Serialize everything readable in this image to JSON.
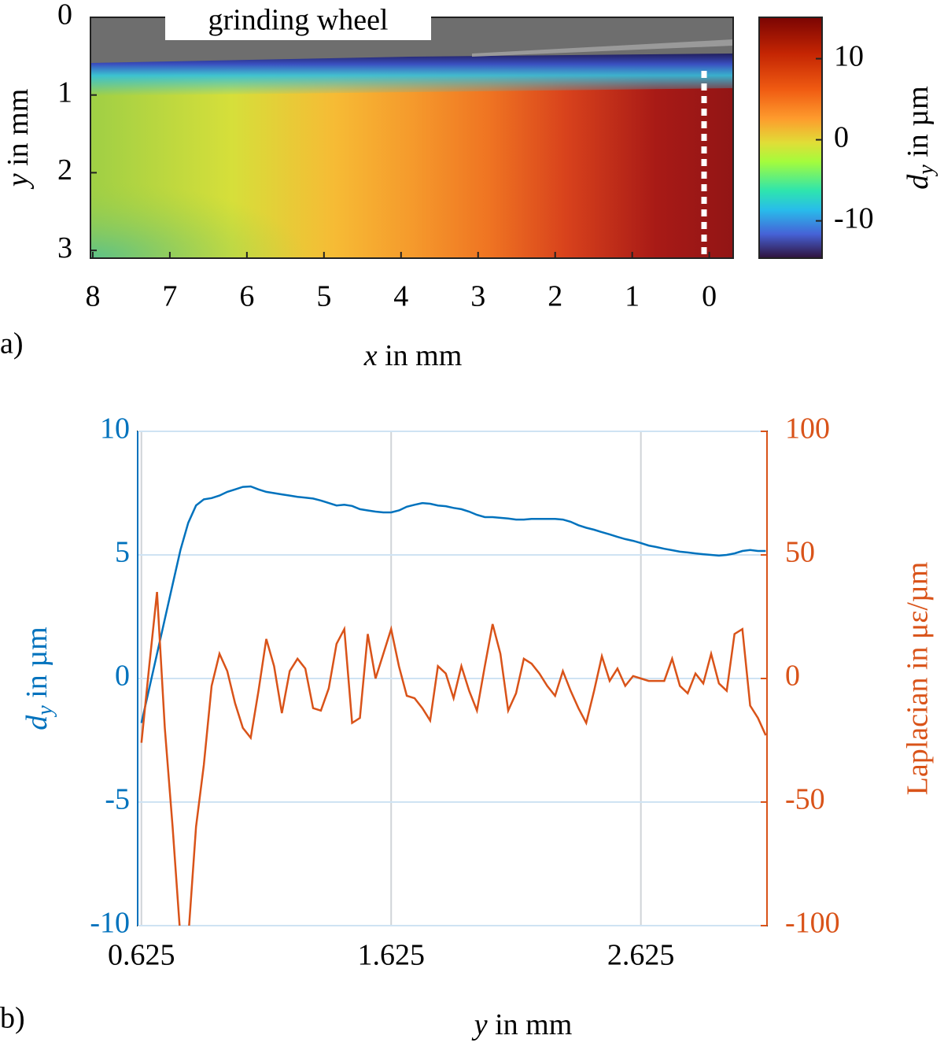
{
  "chart_data": [
    {
      "type": "heatmap",
      "annotation": "grinding wheel",
      "panel_label": "a)",
      "xlabel": {
        "symbol": "x",
        "text": " in mm"
      },
      "ylabel": {
        "symbol": "y",
        "text": " in mm"
      },
      "colorbar_label": {
        "symbol": "d",
        "subscript": "y",
        "text": " in µm"
      },
      "xlim": [
        8.03,
        -0.31
      ],
      "xticks": [
        8,
        7,
        6,
        5,
        4,
        3,
        2,
        1,
        0
      ],
      "ylim": [
        0,
        3.1
      ],
      "yticks": [
        0,
        1,
        2,
        3
      ],
      "clim": [
        -14.6,
        15.1
      ],
      "cticks": [
        -10,
        0,
        10
      ]
    },
    {
      "type": "line",
      "panel_label": "b)",
      "xlabel": {
        "symbol": "y",
        "text": " in mm"
      },
      "ylabel": {
        "symbol": "d",
        "subscript": "y",
        "text": " in µm"
      },
      "y2label": "Laplacian in με/µm",
      "xlim": [
        0.61,
        3.13
      ],
      "xticks": [
        0.625,
        1.625,
        2.625
      ],
      "ylim": [
        -10,
        10
      ],
      "yticks": [
        -10,
        -5,
        0,
        5,
        10
      ],
      "y2lim": [
        -100,
        100
      ],
      "y2ticks": [
        -100,
        -50,
        0,
        50,
        100
      ],
      "grid": true,
      "x": [
        0.625,
        0.65625,
        0.6875,
        0.71875,
        0.75,
        0.78125,
        0.8125,
        0.84375,
        0.875,
        0.90625,
        0.9375,
        0.96875,
        1.0,
        1.03125,
        1.0625,
        1.09375,
        1.125,
        1.15625,
        1.1875,
        1.21875,
        1.25,
        1.28125,
        1.3125,
        1.34375,
        1.375,
        1.40625,
        1.4375,
        1.46875,
        1.5,
        1.53125,
        1.5625,
        1.59375,
        1.625,
        1.65625,
        1.6875,
        1.71875,
        1.75,
        1.78125,
        1.8125,
        1.84375,
        1.875,
        1.90625,
        1.9375,
        1.96875,
        2.0,
        2.03125,
        2.0625,
        2.09375,
        2.125,
        2.15625,
        2.1875,
        2.21875,
        2.25,
        2.28125,
        2.3125,
        2.34375,
        2.375,
        2.40625,
        2.4375,
        2.46875,
        2.5,
        2.53125,
        2.5625,
        2.59375,
        2.625,
        2.65625,
        2.6875,
        2.71875,
        2.75,
        2.78125,
        2.8125,
        2.84375,
        2.875,
        2.90625,
        2.9375,
        2.96875,
        3.0,
        3.03125,
        3.0625,
        3.09375,
        3.125
      ],
      "series": [
        {
          "color": "#0072bd",
          "values": [
            -1.8,
            -0.4,
            1.0,
            2.4,
            3.8,
            5.2,
            6.3,
            7.0,
            7.25,
            7.3,
            7.4,
            7.55,
            7.65,
            7.75,
            7.77,
            7.65,
            7.55,
            7.5,
            7.45,
            7.4,
            7.35,
            7.32,
            7.28,
            7.2,
            7.1,
            7.0,
            7.03,
            6.98,
            6.85,
            6.8,
            6.75,
            6.72,
            6.72,
            6.8,
            6.95,
            7.03,
            7.1,
            7.07,
            7.0,
            6.97,
            6.9,
            6.85,
            6.75,
            6.62,
            6.53,
            6.53,
            6.5,
            6.47,
            6.43,
            6.43,
            6.46,
            6.46,
            6.46,
            6.46,
            6.43,
            6.34,
            6.2,
            6.1,
            6.02,
            5.92,
            5.83,
            5.73,
            5.64,
            5.57,
            5.48,
            5.38,
            5.32,
            5.25,
            5.19,
            5.13,
            5.1,
            5.06,
            5.03,
            5.0,
            4.97,
            5.0,
            5.06,
            5.16,
            5.2,
            5.16,
            5.16
          ]
        },
        {
          "color": "#d95319",
          "axis": "y2",
          "values": [
            -26,
            5,
            35,
            -20,
            -60,
            -105,
            -105,
            -60,
            -35,
            -3,
            10,
            3,
            -10,
            -20,
            -24,
            -5,
            16,
            5,
            -14,
            3,
            8,
            4,
            -12,
            -13,
            -4,
            14,
            20,
            -18,
            -16,
            18,
            0,
            10,
            20,
            5,
            -7,
            -8,
            -12,
            -17,
            5,
            2,
            -8,
            5,
            -5,
            -13,
            5,
            22,
            10,
            -13,
            -6,
            8,
            6,
            2,
            -3,
            -7,
            3,
            -5,
            -12,
            -18,
            -5,
            9,
            -1,
            4,
            -3,
            1,
            0,
            -1,
            -1,
            -1,
            8,
            -3,
            -6,
            2,
            -2,
            10,
            -2,
            -5,
            18,
            20,
            -11,
            -16,
            -23
          ]
        }
      ]
    }
  ]
}
